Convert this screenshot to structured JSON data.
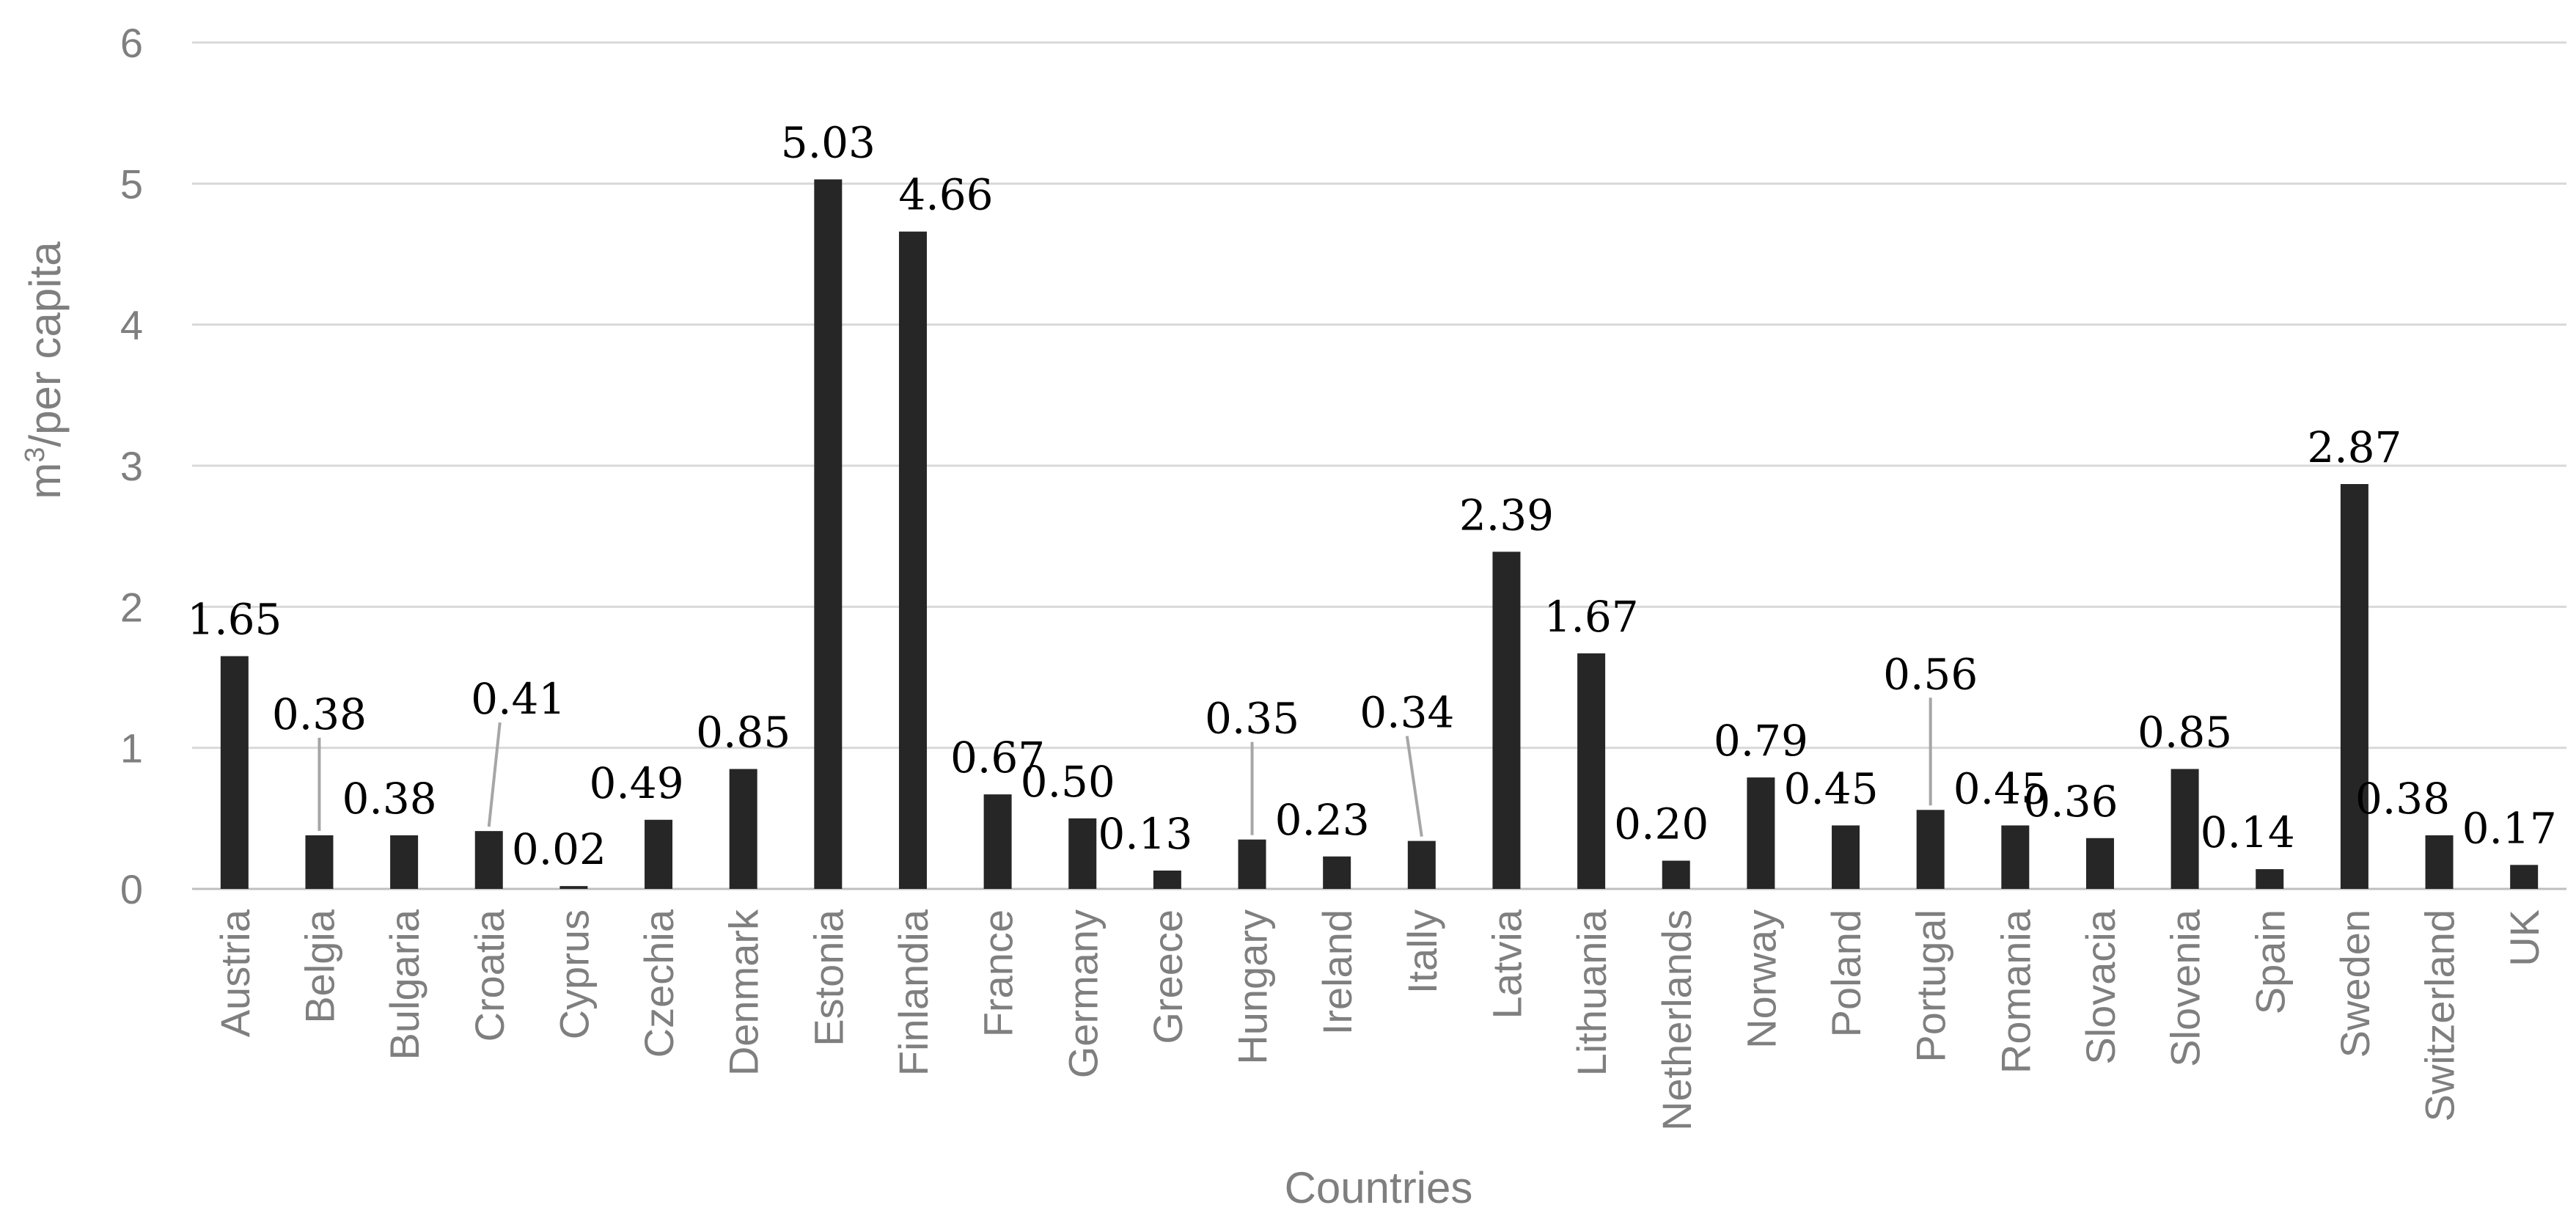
{
  "chart_data": {
    "type": "bar",
    "categories": [
      "Austria",
      "Belgia",
      "Bulgaria",
      "Croatia",
      "Cyprus",
      "Czechia",
      "Denmark",
      "Estonia",
      "Finlandia",
      "France",
      "Germany",
      "Greece",
      "Hungary",
      "Ireland",
      "Itally",
      "Latvia",
      "Lithuania",
      "Netherlands",
      "Norway",
      "Poland",
      "Portugal",
      "Romania",
      "Slovacia",
      "Slovenia",
      "Spain",
      "Sweden",
      "Switzerland",
      "UK"
    ],
    "values": [
      1.65,
      0.38,
      0.38,
      0.41,
      0.02,
      0.49,
      0.85,
      5.03,
      4.66,
      0.67,
      0.5,
      0.13,
      0.35,
      0.23,
      0.34,
      2.39,
      1.67,
      0.2,
      0.79,
      0.45,
      0.56,
      0.45,
      0.36,
      0.85,
      0.14,
      2.87,
      0.38,
      0.17
    ],
    "data_labels": [
      "1.65",
      "0.38",
      "0.38",
      "0.41",
      "0.02",
      "0.49",
      "0.85",
      "5.03",
      "4.66",
      "0.67",
      "0.50",
      "0.13",
      "0.35",
      "0.23",
      "0.34",
      "2.39",
      "1.67",
      "0.20",
      "0.79",
      "0.45",
      "0.56",
      "0.45",
      "0.36",
      "0.85",
      "0.14",
      "2.87",
      "0.38",
      "0.17"
    ],
    "y_ticks": [
      "0",
      "1",
      "2",
      "3",
      "4",
      "5",
      "6"
    ],
    "ylim": [
      0,
      6
    ],
    "xlabel": "Countries",
    "ylabel_base": "m",
    "ylabel_sup": "3",
    "ylabel_rest": "/per capita",
    "title": "",
    "grid": true,
    "bar_color": "#262626",
    "label_leader_lines": [
      "Belgia",
      "Croatia",
      "Hungary",
      "Itally",
      "Portugal"
    ]
  }
}
